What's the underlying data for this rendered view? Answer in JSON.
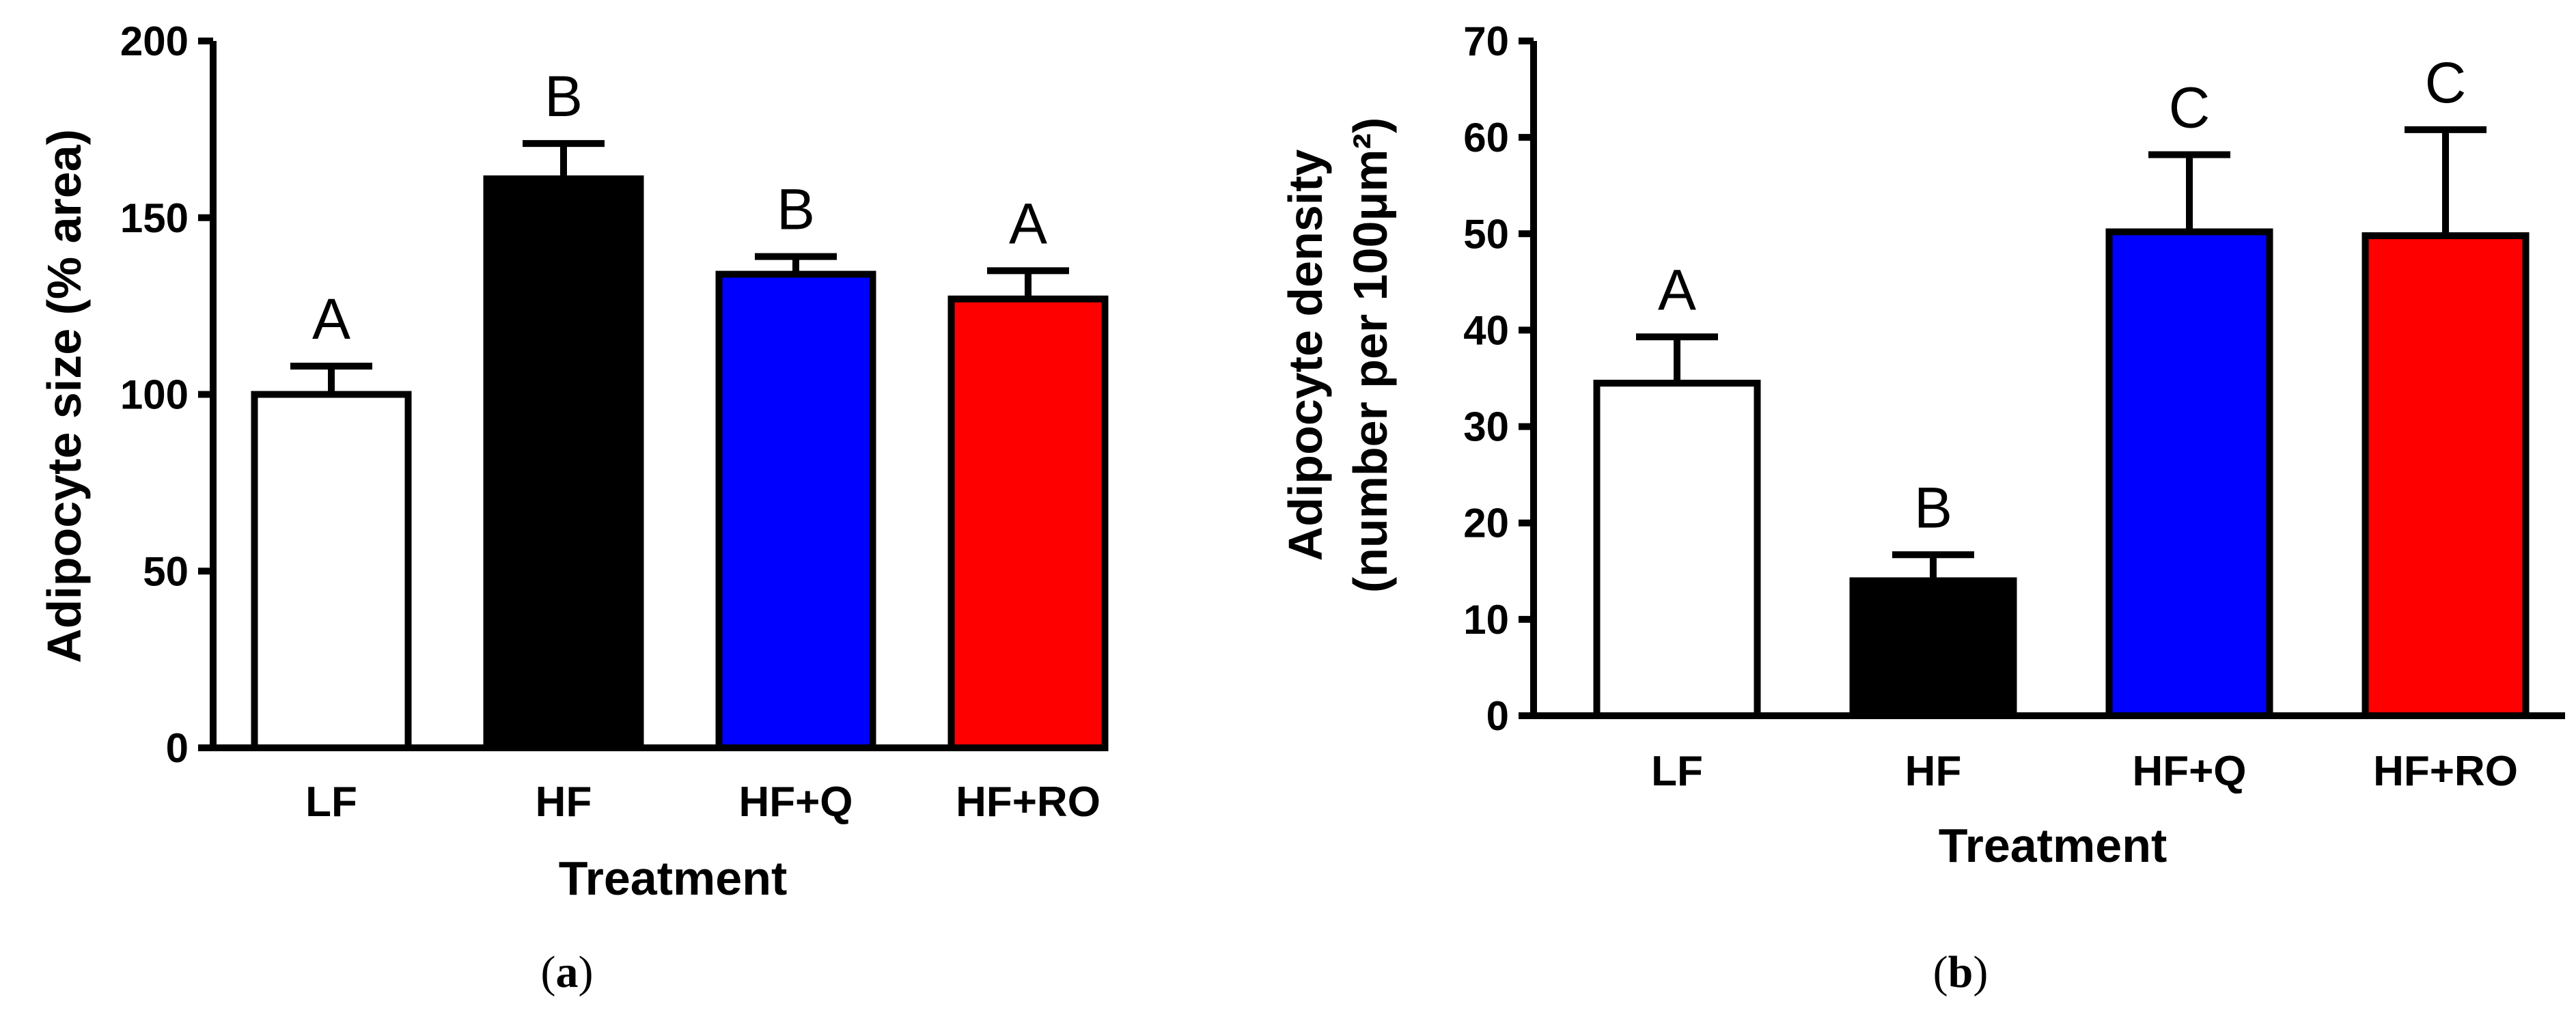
{
  "chart_data": [
    {
      "type": "bar",
      "panel": "(a)",
      "panel_letter": "a",
      "categories": [
        "LF",
        "HF",
        "HF+Q",
        "HF+RO"
      ],
      "values": [
        100,
        161,
        134,
        127
      ],
      "errors": [
        8,
        10,
        5,
        8
      ],
      "significance": [
        "A",
        "B",
        "B",
        "A"
      ],
      "colors": [
        "#ffffff",
        "#000000",
        "#0000ff",
        "#ff0000"
      ],
      "title": "",
      "xlabel": "Treatment",
      "ylabel": "Adipocyte size (% area)",
      "ylabel_lines": [
        "Adipocyte size (% area)"
      ],
      "ylim": [
        0,
        200
      ],
      "yticks": [
        0,
        50,
        100,
        150,
        200
      ],
      "grid": false
    },
    {
      "type": "bar",
      "panel": "(b)",
      "panel_letter": "b",
      "categories": [
        "LF",
        "HF",
        "HF+Q",
        "HF+RO"
      ],
      "values": [
        34.5,
        14,
        50.2,
        49.8
      ],
      "errors": [
        4.8,
        2.7,
        8,
        11
      ],
      "significance": [
        "A",
        "B",
        "C",
        "C"
      ],
      "colors": [
        "#ffffff",
        "#000000",
        "#0000ff",
        "#ff0000"
      ],
      "title": "",
      "xlabel": "Treatment",
      "ylabel": "Adipocyte density (number per 100μm²)",
      "ylabel_lines": [
        "Adipocyte density",
        "(number per 100μm²)"
      ],
      "ylim": [
        0,
        70
      ],
      "yticks": [
        0,
        10,
        20,
        30,
        40,
        50,
        60,
        70
      ],
      "grid": false
    }
  ]
}
